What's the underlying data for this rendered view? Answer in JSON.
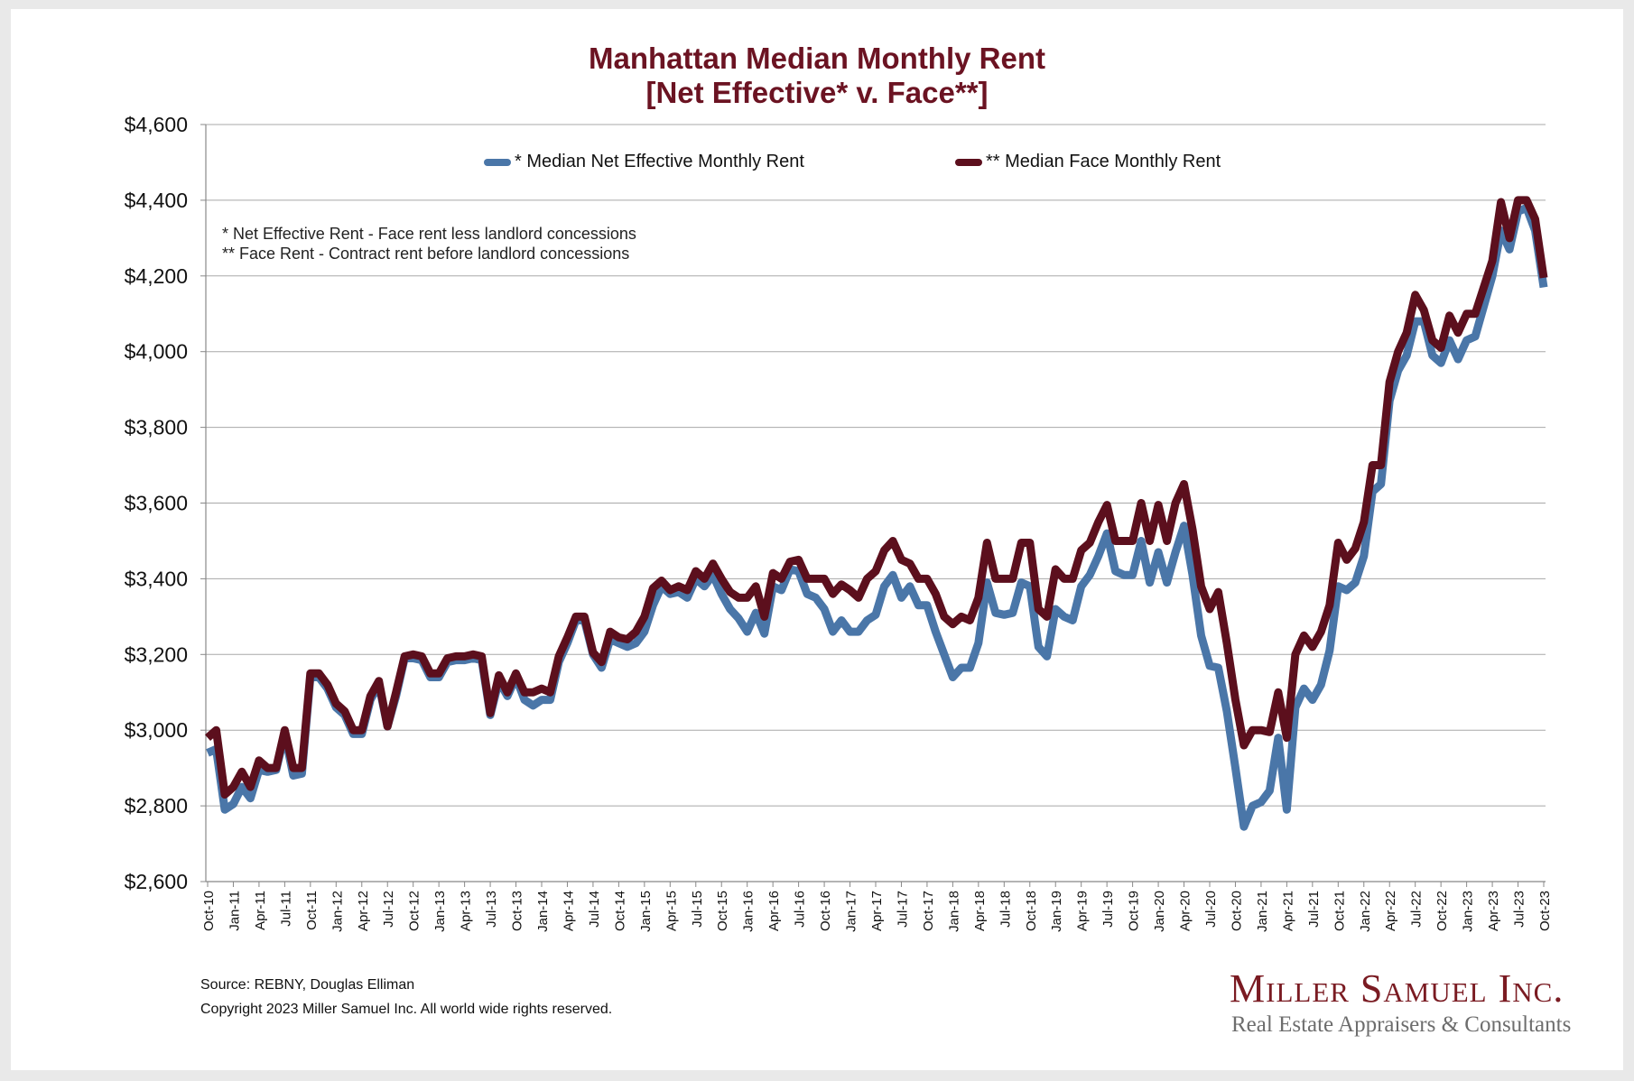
{
  "title_line1": "Manhattan Median Monthly Rent",
  "title_line2": "[Net Effective* v. Face**]",
  "notes": {
    "line1": "* Net Effective Rent - Face rent less landlord concessions",
    "line2": "** Face Rent - Contract rent before landlord concessions"
  },
  "source": "Source: REBNY, Douglas Elliman",
  "copyright": "Copyright 2023 Miller Samuel Inc.  All world wide rights reserved.",
  "logo": {
    "name": "Miller Samuel Inc.",
    "tagline": "Real Estate Appraisers & Consultants"
  },
  "colors": {
    "net_effective": "#4a76a8",
    "face": "#5c0f1d",
    "title": "#6b1322"
  },
  "chart_data": {
    "type": "line",
    "title": "Manhattan Median Monthly Rent [Net Effective* v. Face**]",
    "ylim": [
      2600,
      4600
    ],
    "y_ticks": [
      "$2,600",
      "$2,800",
      "$3,000",
      "$3,200",
      "$3,400",
      "$3,600",
      "$3,800",
      "$4,000",
      "$4,200",
      "$4,400",
      "$4,600"
    ],
    "y_tick_values": [
      2600,
      2800,
      3000,
      3200,
      3400,
      3600,
      3800,
      4000,
      4200,
      4400,
      4600
    ],
    "x_tick_labels": [
      "Oct-10",
      "Jan-11",
      "Apr-11",
      "Jul-11",
      "Oct-11",
      "Jan-12",
      "Apr-12",
      "Jul-12",
      "Oct-12",
      "Jan-13",
      "Apr-13",
      "Jul-13",
      "Oct-13",
      "Jan-14",
      "Apr-14",
      "Jul-14",
      "Oct-14",
      "Jan-15",
      "Apr-15",
      "Jul-15",
      "Oct-15",
      "Jan-16",
      "Apr-16",
      "Jul-16",
      "Oct-16",
      "Jan-17",
      "Apr-17",
      "Jul-17",
      "Oct-17",
      "Jan-18",
      "Apr-18",
      "Jul-18",
      "Oct-18",
      "Jan-19",
      "Apr-19",
      "Jul-19",
      "Oct-19",
      "Jan-20",
      "Apr-20",
      "Jul-20",
      "Oct-20",
      "Jan-21",
      "Apr-21",
      "Jul-21",
      "Oct-21",
      "Jan-22",
      "Apr-22",
      "Jul-22",
      "Oct-22",
      "Jan-23",
      "Apr-23",
      "Jul-23",
      "Oct-23"
    ],
    "x_start": "Oct-10",
    "x_end": "Oct-23",
    "grid": true,
    "legend": "top",
    "series": [
      {
        "name": "* Median Net Effective Monthly Rent",
        "values": [
          2940,
          2950,
          2790,
          2805,
          2850,
          2820,
          2895,
          2890,
          2895,
          2990,
          2880,
          2885,
          3140,
          3140,
          3110,
          3060,
          3040,
          2990,
          2990,
          3080,
          3120,
          3010,
          3090,
          3190,
          3190,
          3185,
          3140,
          3140,
          3180,
          3185,
          3185,
          3190,
          3185,
          3040,
          3130,
          3090,
          3140,
          3080,
          3065,
          3080,
          3080,
          3180,
          3230,
          3290,
          3290,
          3200,
          3165,
          3240,
          3230,
          3220,
          3230,
          3260,
          3330,
          3380,
          3360,
          3365,
          3350,
          3400,
          3380,
          3410,
          3360,
          3320,
          3295,
          3260,
          3310,
          3255,
          3380,
          3370,
          3425,
          3420,
          3360,
          3350,
          3320,
          3260,
          3290,
          3260,
          3260,
          3290,
          3305,
          3380,
          3410,
          3350,
          3380,
          3330,
          3330,
          3260,
          3200,
          3140,
          3165,
          3165,
          3230,
          3390,
          3310,
          3305,
          3310,
          3390,
          3380,
          3220,
          3195,
          3320,
          3300,
          3290,
          3380,
          3410,
          3460,
          3520,
          3420,
          3410,
          3410,
          3500,
          3390,
          3470,
          3390,
          3470,
          3540,
          3410,
          3250,
          3170,
          3165,
          3050,
          2900,
          2745,
          2800,
          2810,
          2840,
          2980,
          2790,
          3060,
          3110,
          3080,
          3120,
          3210,
          3380,
          3370,
          3390,
          3460,
          3630,
          3650,
          3870,
          3950,
          3990,
          4080,
          4080,
          3990,
          3970,
          4030,
          3980,
          4030,
          4040,
          4120,
          4200,
          4320,
          4270,
          4370,
          4380,
          4320,
          4170
        ]
      },
      {
        "name": "** Median Face Monthly Rent",
        "values": [
          2980,
          3000,
          2830,
          2850,
          2890,
          2850,
          2920,
          2900,
          2900,
          3000,
          2900,
          2900,
          3150,
          3150,
          3120,
          3070,
          3050,
          3000,
          3000,
          3090,
          3130,
          3010,
          3100,
          3195,
          3200,
          3195,
          3150,
          3150,
          3190,
          3195,
          3195,
          3200,
          3195,
          3045,
          3145,
          3100,
          3150,
          3100,
          3100,
          3110,
          3100,
          3195,
          3245,
          3300,
          3300,
          3205,
          3180,
          3260,
          3245,
          3240,
          3260,
          3300,
          3375,
          3395,
          3370,
          3380,
          3370,
          3420,
          3400,
          3440,
          3400,
          3365,
          3350,
          3350,
          3380,
          3300,
          3415,
          3400,
          3445,
          3450,
          3400,
          3400,
          3400,
          3360,
          3385,
          3370,
          3350,
          3400,
          3420,
          3475,
          3500,
          3450,
          3440,
          3400,
          3400,
          3360,
          3300,
          3280,
          3300,
          3290,
          3350,
          3495,
          3400,
          3400,
          3400,
          3495,
          3495,
          3320,
          3300,
          3425,
          3400,
          3400,
          3475,
          3495,
          3550,
          3595,
          3500,
          3500,
          3500,
          3600,
          3500,
          3595,
          3500,
          3600,
          3650,
          3530,
          3380,
          3320,
          3365,
          3230,
          3080,
          2960,
          3000,
          3000,
          2995,
          3100,
          2980,
          3200,
          3250,
          3220,
          3260,
          3330,
          3495,
          3450,
          3480,
          3550,
          3700,
          3700,
          3920,
          4000,
          4050,
          4150,
          4110,
          4030,
          4010,
          4095,
          4050,
          4100,
          4100,
          4170,
          4240,
          4395,
          4300,
          4400,
          4400,
          4350,
          4195
        ]
      }
    ]
  }
}
